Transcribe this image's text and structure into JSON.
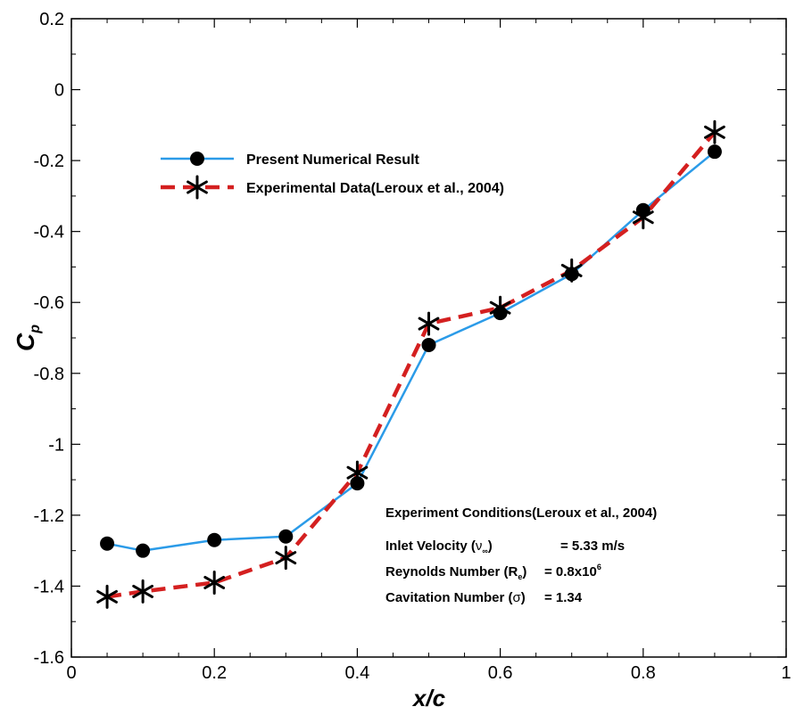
{
  "chart_data": {
    "type": "line",
    "xlabel": "x/c",
    "ylabel": "C",
    "ylabel_sub": "p",
    "xlim": [
      0,
      1
    ],
    "ylim": [
      -1.6,
      0.2
    ],
    "xticks": [
      "0",
      "0.2",
      "0.4",
      "0.6",
      "0.8",
      "1"
    ],
    "xtick_values": [
      0,
      0.2,
      0.4,
      0.6,
      0.8,
      1
    ],
    "yticks": [
      "0.2",
      "0",
      "-0.2",
      "-0.4",
      "-0.6",
      "-0.8",
      "-1",
      "-1.2",
      "-1.4",
      "-1.6"
    ],
    "ytick_values": [
      0.2,
      0,
      -0.2,
      -0.4,
      -0.6,
      -0.8,
      -1,
      -1.2,
      -1.4,
      -1.6
    ],
    "grid": false,
    "legend_position": "top-left",
    "series": [
      {
        "name": "Present Numerical Result",
        "color": "#2b9be8",
        "marker": "circle",
        "line_style": "solid",
        "x": [
          0.05,
          0.1,
          0.2,
          0.3,
          0.4,
          0.5,
          0.6,
          0.7,
          0.8,
          0.9
        ],
        "y": [
          -1.28,
          -1.3,
          -1.27,
          -1.26,
          -1.11,
          -0.72,
          -0.63,
          -0.52,
          -0.34,
          -0.175
        ]
      },
      {
        "name": "Experimental Data(Leroux et al., 2004)",
        "color": "#d42020",
        "marker": "asterisk",
        "line_style": "dashed",
        "x": [
          0.05,
          0.1,
          0.2,
          0.3,
          0.4,
          0.5,
          0.6,
          0.7,
          0.8,
          0.9
        ],
        "y": [
          -1.43,
          -1.415,
          -1.39,
          -1.32,
          -1.08,
          -0.66,
          -0.615,
          -0.51,
          -0.36,
          -0.12
        ]
      }
    ],
    "annotations": {
      "title": "Experiment Conditions(Leroux et al., 2004)",
      "rows": [
        {
          "label": "Inlet Velocity (",
          "symbol": "ν",
          "symbol_sub": "∞",
          "label_end": ")",
          "value": "= 5.33 m/s"
        },
        {
          "label": "Reynolds Number (R",
          "symbol": "",
          "symbol_sub": "e",
          "label_end": ")",
          "value": "= 0.8x10",
          "value_sup": "6"
        },
        {
          "label": "Cavitation Number (",
          "symbol": "σ",
          "symbol_sub": "",
          "label_end": ")",
          "value": "= 1.34"
        }
      ]
    }
  }
}
